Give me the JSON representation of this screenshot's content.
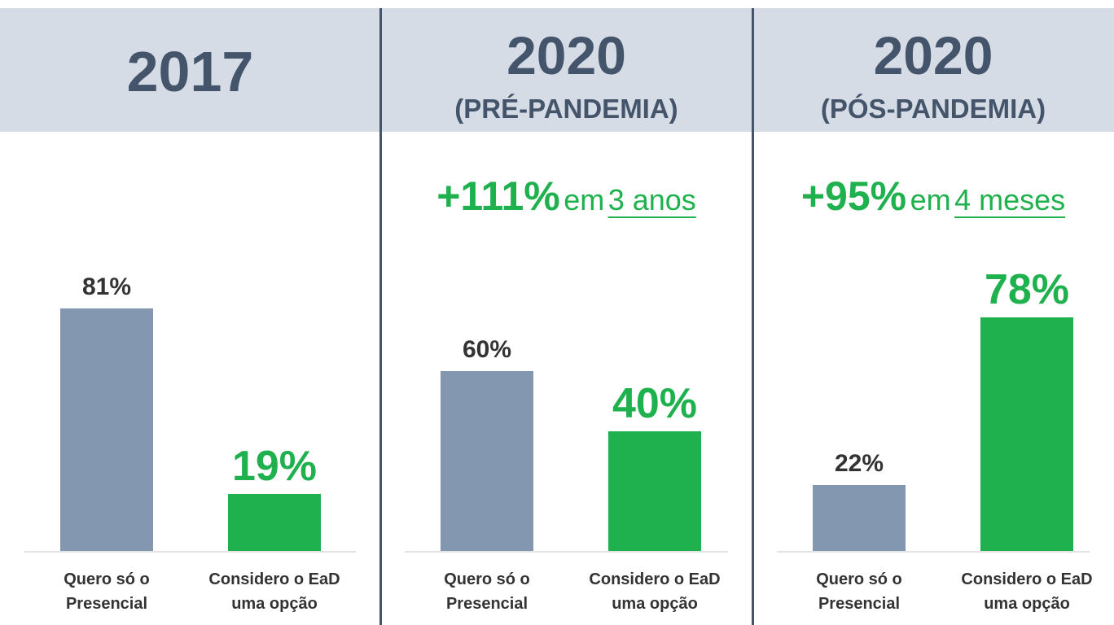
{
  "chart_data": [
    {
      "type": "bar",
      "title": "2017",
      "categories": [
        "Quero só o Presencial",
        "Considero o EaD uma opção"
      ],
      "values": [
        81,
        19
      ],
      "value_labels": [
        "81%",
        "19%"
      ],
      "colors": [
        "#8497b0",
        "#1fb14e"
      ],
      "ylim": [
        0,
        100
      ]
    },
    {
      "type": "bar",
      "title": "2020",
      "subtitle": "(PRÉ-PANDEMIA)",
      "annotation": {
        "value": "+111%",
        "text": "em",
        "period": "3 anos"
      },
      "categories": [
        "Quero só o Presencial",
        "Considero o EaD uma opção"
      ],
      "values": [
        60,
        40
      ],
      "value_labels": [
        "60%",
        "40%"
      ],
      "colors": [
        "#8497b0",
        "#1fb14e"
      ],
      "ylim": [
        0,
        100
      ]
    },
    {
      "type": "bar",
      "title": "2020",
      "subtitle": "(PÓS-PANDEMIA)",
      "annotation": {
        "value": "+95%",
        "text": "em",
        "period": "4 meses"
      },
      "categories": [
        "Quero só o Presencial",
        "Considero o EaD uma opção"
      ],
      "values": [
        22,
        78
      ],
      "value_labels": [
        "22%",
        "78%"
      ],
      "colors": [
        "#8497b0",
        "#1fb14e"
      ],
      "ylim": [
        0,
        100
      ]
    }
  ]
}
